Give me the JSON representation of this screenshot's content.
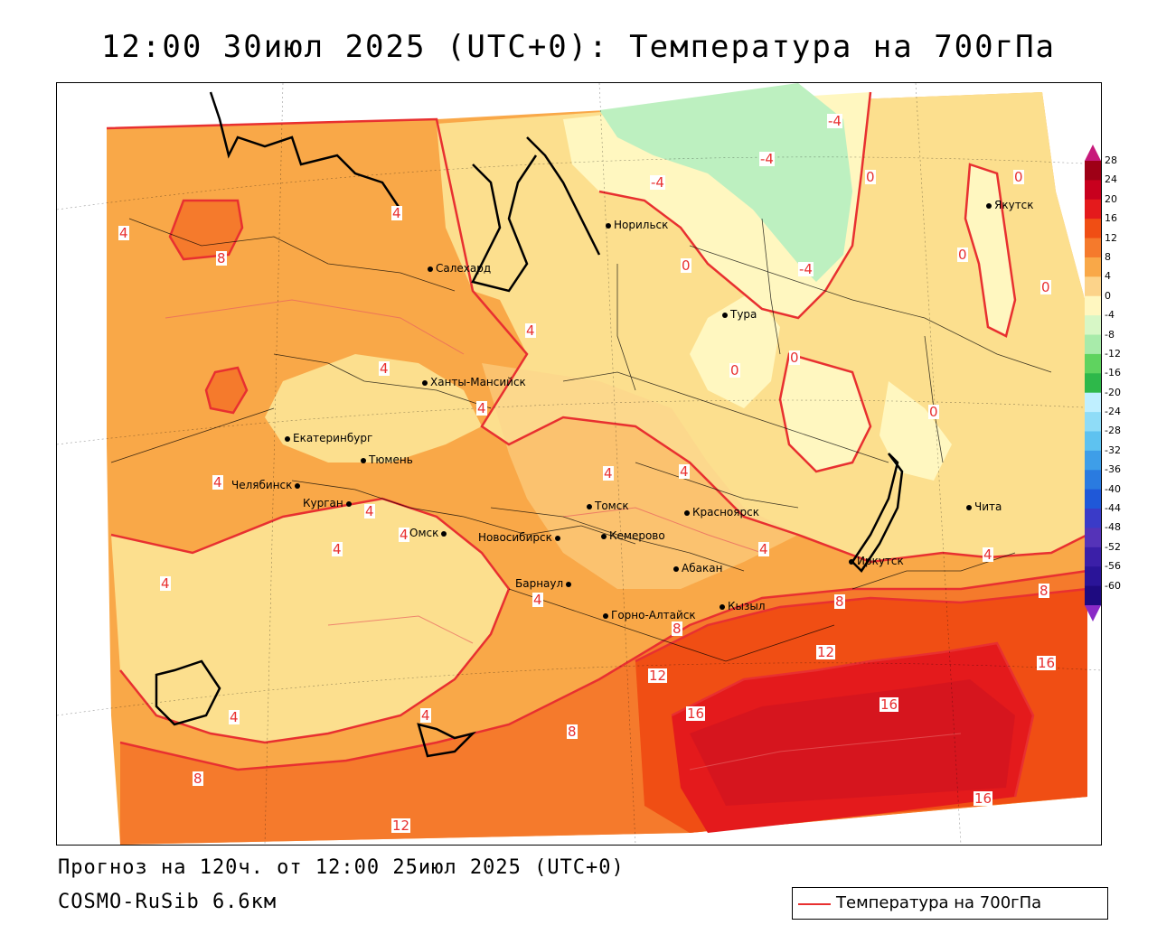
{
  "title": "12:00 30июл 2025 (UTC+0): Температура на 700гПа",
  "footer": {
    "forecast": "Прогноз на 120ч. от 12:00 25июл 2025 (UTC+0)",
    "model": "COSMO-RuSib 6.6км"
  },
  "legend": {
    "label": "Температура на 700гПа",
    "color": "#e83030"
  },
  "colorbar": {
    "ticks": [
      "28",
      "24",
      "20",
      "16",
      "12",
      "8",
      "4",
      "0",
      "-4",
      "-8",
      "-12",
      "-16",
      "-20",
      "-24",
      "-28",
      "-32",
      "-36",
      "-40",
      "-44",
      "-48",
      "-52",
      "-56",
      "-60"
    ],
    "colors": [
      "#9e0016",
      "#c8001e",
      "#e41a1c",
      "#f04e14",
      "#f57a2c",
      "#f9a848",
      "#fcd38a",
      "#fff7c0",
      "#d7f7c6",
      "#a8ebaa",
      "#5fd35f",
      "#2eb84a",
      "#bfefff",
      "#8fdcf7",
      "#5ec2f0",
      "#3e9ee8",
      "#2a7be0",
      "#1f58d8",
      "#3a3bc8",
      "#5533b8",
      "#3b1fa8",
      "#2a1498",
      "#1e0a80"
    ],
    "top_color": "#c7197a",
    "bottom_color": "#8a2ac7"
  },
  "cities": [
    {
      "name": "Норильск"
    },
    {
      "name": "Якутск"
    },
    {
      "name": "Салехард"
    },
    {
      "name": "Тура"
    },
    {
      "name": "Ханты-Мансийск"
    },
    {
      "name": "Екатеринбург"
    },
    {
      "name": "Тюмень"
    },
    {
      "name": "Челябинск"
    },
    {
      "name": "Курган"
    },
    {
      "name": "Томск"
    },
    {
      "name": "Красноярск"
    },
    {
      "name": "Омск"
    },
    {
      "name": "Новосибирск"
    },
    {
      "name": "Кемерово"
    },
    {
      "name": "Абакан"
    },
    {
      "name": "Барнаул"
    },
    {
      "name": "Горно-Алтайск"
    },
    {
      "name": "Кызыл"
    },
    {
      "name": "Иркутск"
    },
    {
      "name": "Чита"
    }
  ],
  "contour_labels": [
    "-4",
    "-4",
    "-4",
    "-4",
    "0",
    "0",
    "0",
    "0",
    "0",
    "0",
    "0",
    "0",
    "4",
    "4",
    "4",
    "4",
    "4",
    "4",
    "4",
    "4",
    "4",
    "4",
    "4",
    "4",
    "4",
    "4",
    "4",
    "4",
    "4",
    "8",
    "8",
    "8",
    "8",
    "8",
    "8",
    "12",
    "12",
    "12",
    "16",
    "16",
    "16"
  ]
}
